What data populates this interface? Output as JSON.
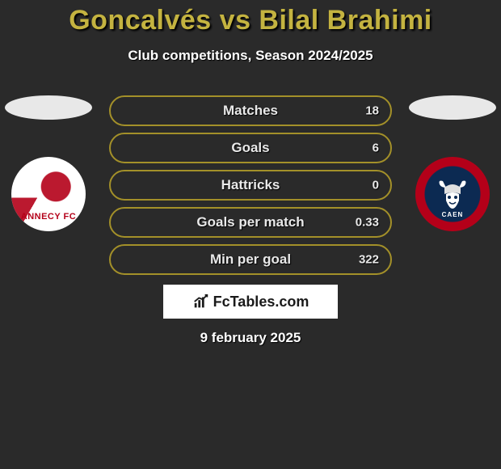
{
  "colors": {
    "background": "#2a2a2a",
    "title": "#c4b340",
    "bar_border": "#a39029",
    "bar_fill": "#a39029",
    "text": "#e9e9e9",
    "white": "#ffffff",
    "flag_left": "#e8e8e8",
    "flag_right": "#e8e8e8"
  },
  "header": {
    "title": "Goncalvés vs Bilal Brahimi",
    "subtitle": "Club competitions, Season 2024/2025"
  },
  "stats": [
    {
      "label": "Matches",
      "right_value": "18",
      "fill_pct": 0
    },
    {
      "label": "Goals",
      "right_value": "6",
      "fill_pct": 0
    },
    {
      "label": "Hattricks",
      "right_value": "0",
      "fill_pct": 0
    },
    {
      "label": "Goals per match",
      "right_value": "0.33",
      "fill_pct": 0
    },
    {
      "label": "Min per goal",
      "right_value": "322",
      "fill_pct": 0
    }
  ],
  "left_club": {
    "name": "ANNECY FC",
    "badge_bg": "#ffffff",
    "badge_accent": "#b40019"
  },
  "right_club": {
    "name": "CAEN",
    "badge_outer": "#b40019",
    "badge_inner": "#0c2a52"
  },
  "brand": {
    "text": "FcTables.com"
  },
  "footer": {
    "date": "9 february 2025"
  }
}
